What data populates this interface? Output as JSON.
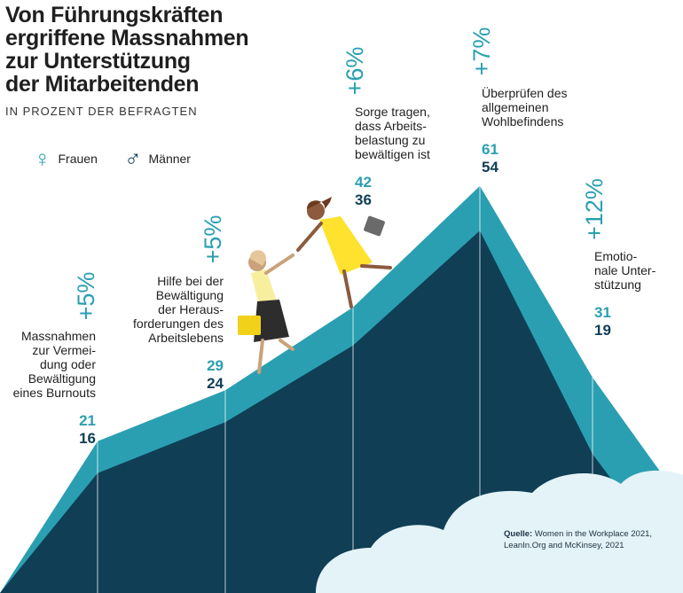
{
  "title_lines": [
    "Von Führungskräften",
    "ergriffene Massnahmen",
    "zur Unterstützung",
    "der Mitarbeitenden"
  ],
  "subtitle": "IN PROZENT DER BEFRAGTEN",
  "legend": {
    "female": "Frauen",
    "male": "Männer"
  },
  "colors": {
    "female": "#2a9fb1",
    "male": "#0f3e55",
    "cloud": "#e3f3f7"
  },
  "source": {
    "label": "Quelle:",
    "text": "Women in the Workplace 2021, LeanIn.Org and McKinsey, 2021"
  },
  "chart_data": {
    "type": "area",
    "title": "Von Führungskräften ergriffene Massnahmen zur Unterstützung der Mitarbeitenden",
    "subtitle": "IN PROZENT DER BEFRAGTEN",
    "categories": [
      "Massnahmen zur Vermeidung oder Bewältigung eines Burnouts",
      "Hilfe bei der Bewältigung der Herausforderungen des Arbeitslebens",
      "Sorge tragen, dass Arbeitsbelastung zu bewältigen ist",
      "Überprüfen des allgemeinen Wohlbefindens",
      "Emotionale Unterstützung"
    ],
    "category_lines": [
      [
        "Massnahmen",
        "zur Vermei-",
        "dung oder",
        "Bewältigung",
        "eines Burnouts"
      ],
      [
        "Hilfe bei der",
        "Bewältigung",
        "der Heraus-",
        "forderungen des",
        "Arbeitslebens"
      ],
      [
        "Sorge tragen,",
        "dass Arbeits-",
        "belastung zu",
        "bewältigen ist"
      ],
      [
        "Überprüfen des",
        "allgemeinen",
        "Wohlbefindens"
      ],
      [
        "Emotio-",
        "nale Unter-",
        "stützung"
      ]
    ],
    "series": [
      {
        "name": "Frauen",
        "values": [
          21,
          29,
          42,
          61,
          31
        ]
      },
      {
        "name": "Männer",
        "values": [
          16,
          24,
          36,
          54,
          19
        ]
      }
    ],
    "difference_labels": [
      "+5%",
      "+5%",
      "+6%",
      "+7%",
      "+12%"
    ],
    "ylim": [
      0,
      70
    ]
  }
}
